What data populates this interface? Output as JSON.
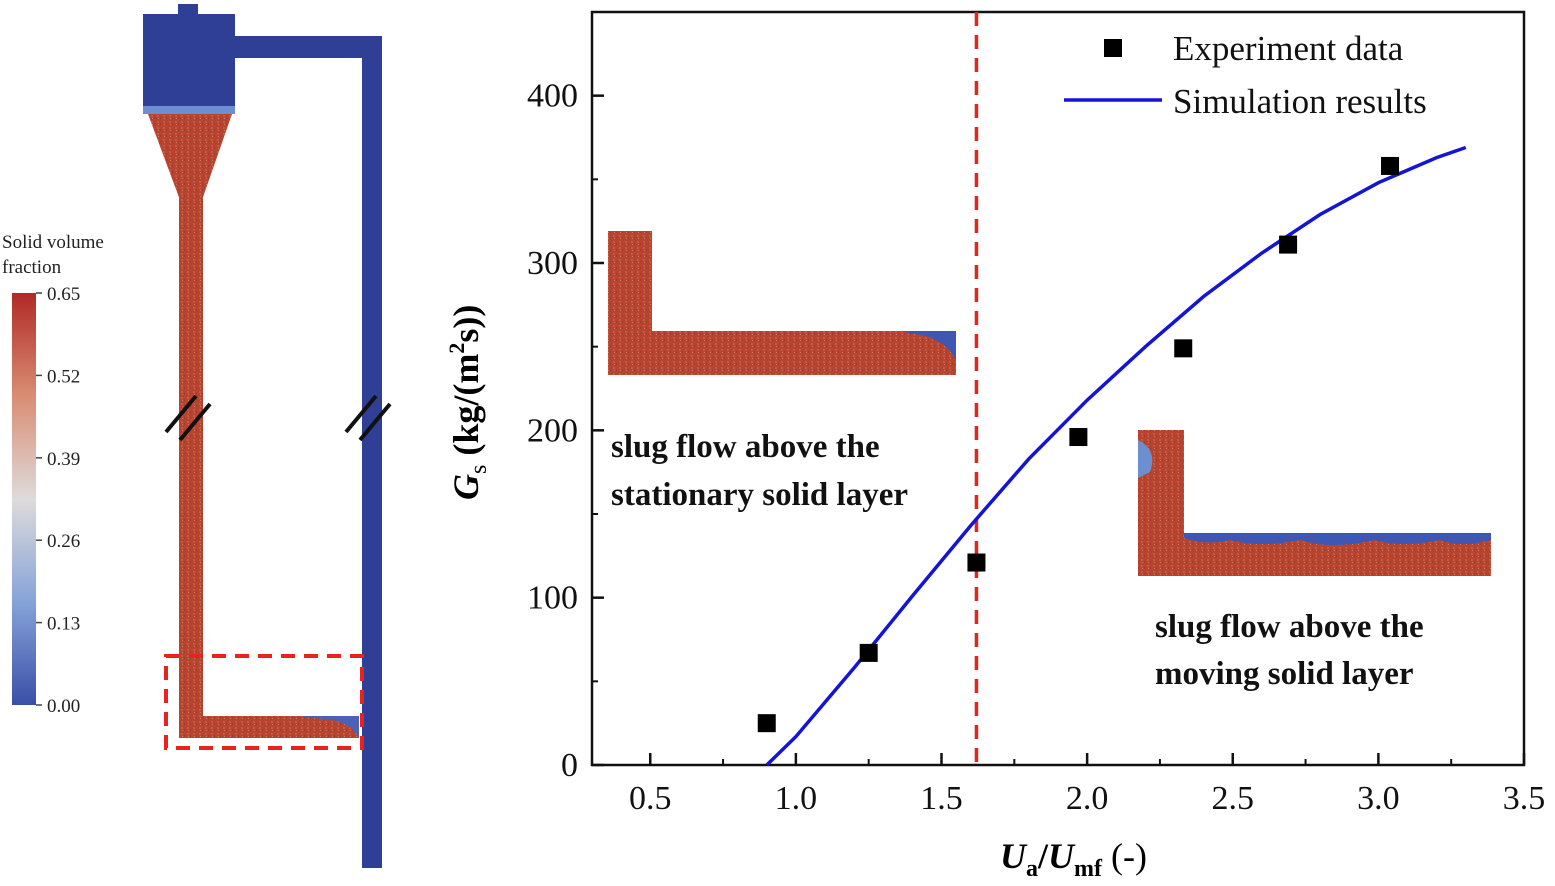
{
  "colorbar": {
    "title_line1": "Solid volume",
    "title_line2": "fraction",
    "ticks": [
      "0.65",
      "0.52",
      "0.39",
      "0.26",
      "0.13",
      "0.00"
    ],
    "min": 0.0,
    "max": 0.65,
    "colors": {
      "high": "#b4312b",
      "mid": "#e0dcdc",
      "low": "#3a4fa8"
    }
  },
  "apparatus": {
    "pipe_color": "#2f3f95",
    "solid_color": "#b8442f"
  },
  "annotations": {
    "left_line1": "slug flow above the",
    "left_line2": "stationary solid layer",
    "right_line1": "slug flow above the",
    "right_line2": "moving solid layer"
  },
  "chart_data": {
    "type": "scatter",
    "x_label": {
      "main": "U",
      "sub": "a",
      "slash": "/",
      "main2": "U",
      "sub2": "mf",
      "unit": " (-)"
    },
    "y_label": {
      "main": "G",
      "sub": "s",
      "unit_pre": " (kg/(m",
      "sup": "2",
      "unit_post": "s))"
    },
    "xlim": [
      0.3,
      3.5
    ],
    "ylim": [
      0,
      450
    ],
    "x_ticks": [
      "0.5",
      "1.0",
      "1.5",
      "2.0",
      "2.5",
      "3.0",
      "3.5"
    ],
    "y_ticks": [
      "0",
      "100",
      "200",
      "300",
      "400"
    ],
    "legend_position": "top-right",
    "vline_x": 1.62,
    "vline_color": "#e8221c",
    "series": [
      {
        "name": "Experiment data",
        "kind": "scatter",
        "color": "#000000",
        "x": [
          0.9,
          1.25,
          1.62,
          1.97,
          2.33,
          2.69,
          3.04
        ],
        "y": [
          25,
          67,
          121,
          196,
          249,
          311,
          358
        ]
      },
      {
        "name": "Simulation results",
        "kind": "line",
        "color": "#1414d6",
        "x": [
          0.9,
          1.0,
          1.2,
          1.4,
          1.6,
          1.8,
          2.0,
          2.2,
          2.4,
          2.6,
          2.8,
          3.0,
          3.2,
          3.3
        ],
        "y": [
          0,
          17,
          58,
          101,
          143,
          183,
          218,
          250,
          280,
          306,
          329,
          348,
          363,
          369
        ]
      }
    ]
  }
}
